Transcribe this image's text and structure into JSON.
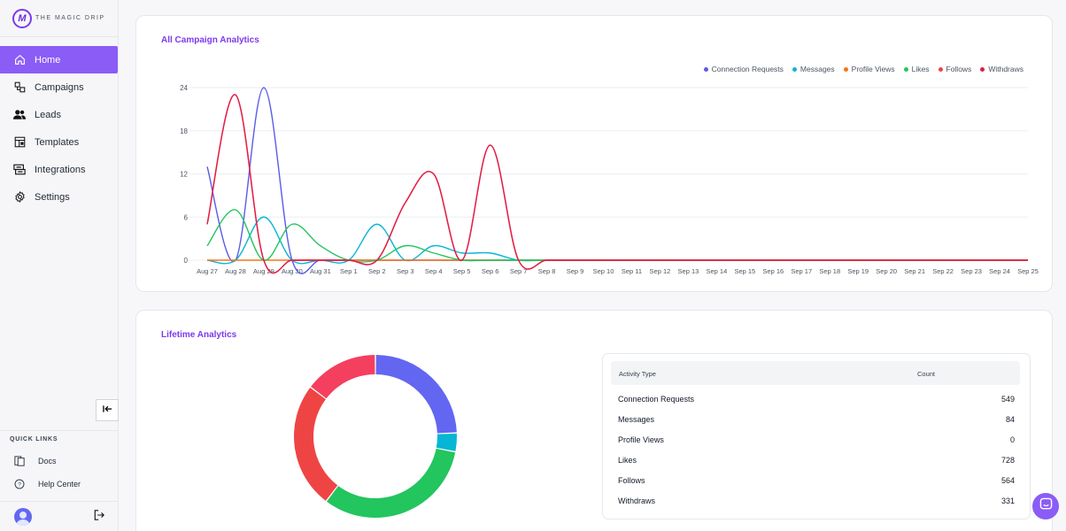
{
  "brand": {
    "mark": "M",
    "name": "THE MAGIC DRIP"
  },
  "nav": [
    {
      "label": "Home",
      "icon": "home-icon",
      "active": true
    },
    {
      "label": "Campaigns",
      "icon": "campaigns-icon"
    },
    {
      "label": "Leads",
      "icon": "users-icon"
    },
    {
      "label": "Templates",
      "icon": "templates-icon"
    },
    {
      "label": "Integrations",
      "icon": "integrations-icon"
    },
    {
      "label": "Settings",
      "icon": "gear-icon"
    }
  ],
  "quick_links": {
    "title": "QUICK LINKS",
    "items": [
      {
        "label": "Docs",
        "icon": "docs-icon"
      },
      {
        "label": "Help Center",
        "icon": "help-icon"
      }
    ]
  },
  "campaign": {
    "title": "All Campaign Analytics"
  },
  "lifetime": {
    "title": "Lifetime Analytics",
    "table_header": {
      "type": "Activity Type",
      "count": "Count"
    },
    "rows": [
      {
        "type": "Connection Requests",
        "count": "549"
      },
      {
        "type": "Messages",
        "count": "84"
      },
      {
        "type": "Profile Views",
        "count": "0"
      },
      {
        "type": "Likes",
        "count": "728"
      },
      {
        "type": "Follows",
        "count": "564"
      },
      {
        "type": "Withdraws",
        "count": "331"
      }
    ]
  },
  "colors": {
    "accent": "#8b5cf6",
    "connection_requests": "#5b5be6",
    "messages": "#06b6d4",
    "profile_views": "#f97316",
    "likes": "#22c55e",
    "follows": "#ef4444",
    "withdraws": "#f43f5e"
  },
  "chart_data": [
    {
      "type": "line",
      "title": "All Campaign Analytics",
      "x": [
        "Aug 27",
        "Aug 28",
        "Aug 29",
        "Aug 30",
        "Aug 31",
        "Sep 1",
        "Sep 2",
        "Sep 3",
        "Sep 4",
        "Sep 5",
        "Sep 6",
        "Sep 7",
        "Sep 8",
        "Sep 9",
        "Sep 10",
        "Sep 11",
        "Sep 12",
        "Sep 13",
        "Sep 14",
        "Sep 15",
        "Sep 16",
        "Sep 17",
        "Sep 18",
        "Sep 19",
        "Sep 20",
        "Sep 21",
        "Sep 22",
        "Sep 23",
        "Sep 24",
        "Sep 25"
      ],
      "yticks": [
        0,
        6,
        12,
        18,
        24
      ],
      "ylim": [
        0,
        24
      ],
      "grid": true,
      "legend": "top-right",
      "series": [
        {
          "name": "Connection Requests",
          "color": "#5b5be6",
          "values": [
            13,
            0,
            24,
            0,
            0,
            0,
            0,
            0,
            0,
            0,
            0,
            0,
            0,
            0,
            0,
            0,
            0,
            0,
            0,
            0,
            0,
            0,
            0,
            0,
            0,
            0,
            0,
            0,
            0,
            0
          ]
        },
        {
          "name": "Messages",
          "color": "#06b6d4",
          "values": [
            0,
            0,
            6,
            0,
            0,
            0,
            5,
            0,
            2,
            1,
            1,
            0,
            0,
            0,
            0,
            0,
            0,
            0,
            0,
            0,
            0,
            0,
            0,
            0,
            0,
            0,
            0,
            0,
            0,
            0
          ]
        },
        {
          "name": "Profile Views",
          "color": "#f97316",
          "values": [
            0,
            0,
            0,
            0,
            0,
            0,
            0,
            0,
            0,
            0,
            0,
            0,
            0,
            0,
            0,
            0,
            0,
            0,
            0,
            0,
            0,
            0,
            0,
            0,
            0,
            0,
            0,
            0,
            0,
            0
          ]
        },
        {
          "name": "Likes",
          "color": "#22c55e",
          "values": [
            2,
            7,
            0,
            5,
            2,
            0,
            0,
            2,
            1,
            0,
            0,
            0,
            0,
            0,
            0,
            0,
            0,
            0,
            0,
            0,
            0,
            0,
            0,
            0,
            0,
            0,
            0,
            0,
            0,
            0
          ]
        },
        {
          "name": "Follows",
          "color": "#ef4444",
          "values": [
            5,
            23,
            0,
            0,
            0,
            0,
            0,
            8,
            12,
            0,
            16,
            0,
            0,
            0,
            0,
            0,
            0,
            0,
            0,
            0,
            0,
            0,
            0,
            0,
            0,
            0,
            0,
            0,
            0,
            0
          ]
        },
        {
          "name": "Withdraws",
          "color": "#e11d48",
          "values": [
            5,
            23,
            0,
            0,
            0,
            0,
            0,
            8,
            12,
            0,
            16,
            0,
            0,
            0,
            0,
            0,
            0,
            0,
            0,
            0,
            0,
            0,
            0,
            0,
            0,
            0,
            0,
            0,
            0,
            0
          ]
        }
      ]
    },
    {
      "type": "pie",
      "title": "Lifetime Analytics",
      "donut": true,
      "categories": [
        "Connection Requests",
        "Messages",
        "Profile Views",
        "Likes",
        "Follows",
        "Withdraws"
      ],
      "values": [
        549,
        84,
        0,
        728,
        564,
        331
      ],
      "colors": [
        "#6366f1",
        "#06b6d4",
        "#f97316",
        "#22c55e",
        "#ef4444",
        "#f43f5e"
      ]
    }
  ]
}
